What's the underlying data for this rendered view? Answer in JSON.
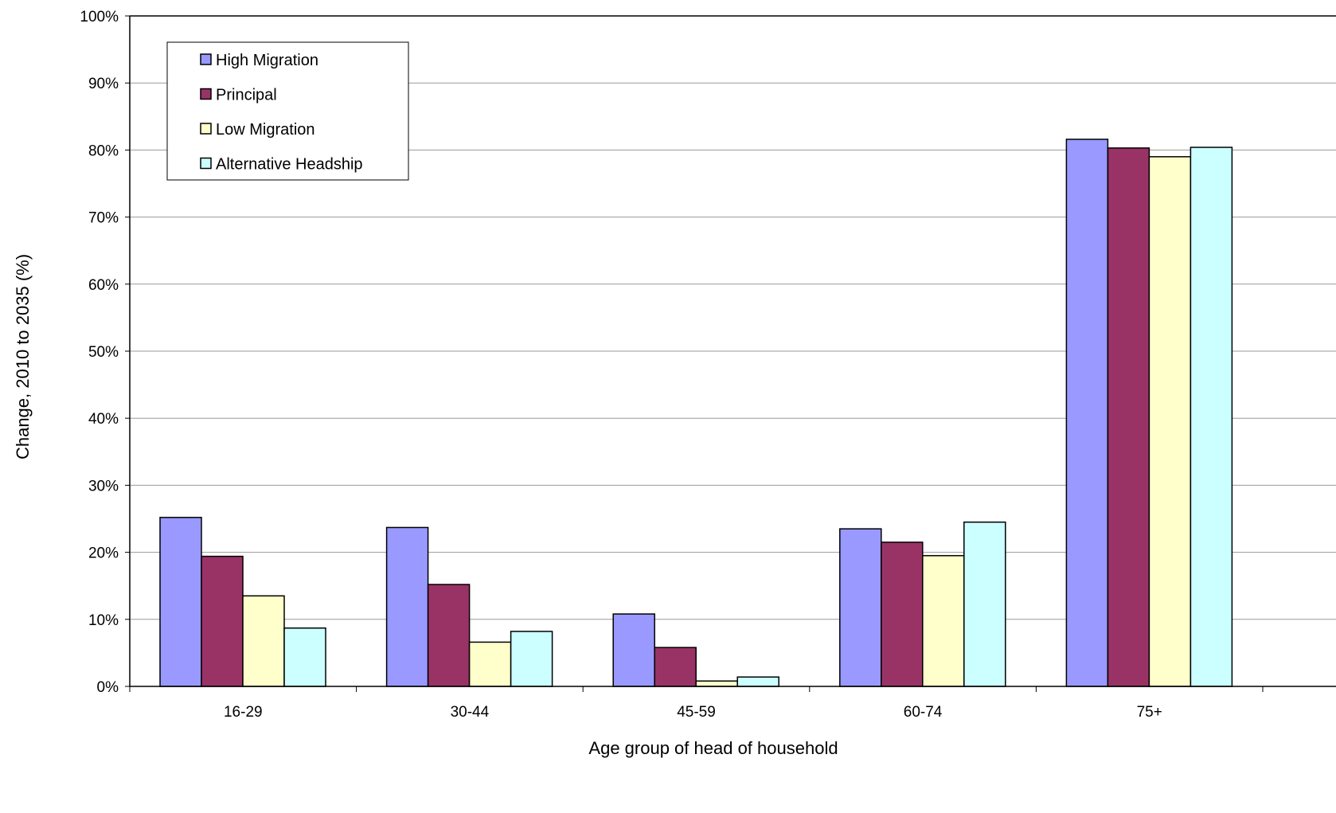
{
  "chart_data": {
    "type": "bar",
    "xlabel": "Age group of head of household",
    "ylabel": "Change, 2010 to 2035 (%)",
    "ylim": [
      0,
      100
    ],
    "yticks": [
      0,
      10,
      20,
      30,
      40,
      50,
      60,
      70,
      80,
      90,
      100
    ],
    "ytick_labels": [
      "0%",
      "10%",
      "20%",
      "30%",
      "40%",
      "50%",
      "60%",
      "70%",
      "80%",
      "90%",
      "100%"
    ],
    "y_unit": "%",
    "grid": true,
    "legend_position": "top-left",
    "categories": [
      "16-29",
      "30-44",
      "45-59",
      "60-74",
      "75+"
    ],
    "series": [
      {
        "name": "High Migration",
        "color": "#9999FF",
        "values": [
          25.2,
          23.7,
          10.8,
          23.5,
          81.6
        ]
      },
      {
        "name": "Principal",
        "color": "#993366",
        "values": [
          19.4,
          15.2,
          5.8,
          21.5,
          80.3
        ]
      },
      {
        "name": "Low Migration",
        "color": "#FFFFCC",
        "values": [
          13.5,
          6.6,
          0.8,
          19.5,
          79.0
        ]
      },
      {
        "name": "Alternative Headship",
        "color": "#CCFFFF",
        "values": [
          8.7,
          8.2,
          1.4,
          24.5,
          80.4
        ]
      }
    ]
  }
}
